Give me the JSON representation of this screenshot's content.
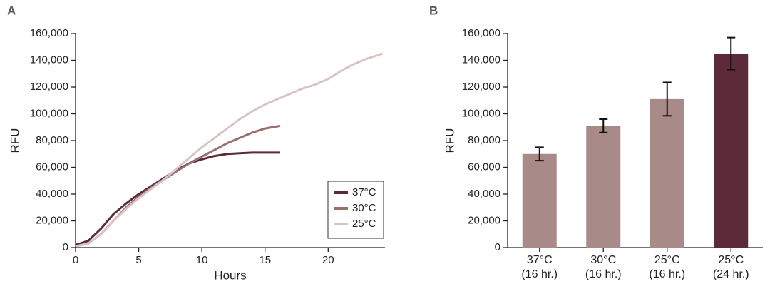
{
  "chart_data": [
    {
      "type": "line",
      "label": "A",
      "xlabel": "Hours",
      "ylabel": "RFU",
      "xlim": [
        0,
        24.5
      ],
      "xticks": [
        0,
        5,
        10,
        15,
        20
      ],
      "ylim": [
        0,
        160000
      ],
      "yticks": [
        0,
        {
          "value": 20000,
          "label": "20,000"
        },
        {
          "value": 40000,
          "label": "40,000"
        },
        {
          "value": 60000,
          "label": "60,000"
        },
        {
          "value": 80000,
          "label": "80,000"
        },
        {
          "value": 100000,
          "label": "100,000"
        },
        {
          "value": 120000,
          "label": "120,000"
        },
        {
          "value": 140000,
          "label": "140,000"
        },
        {
          "value": 160000,
          "label": "160,000"
        }
      ],
      "legend": "lower right",
      "series": [
        {
          "name": "37°C",
          "color": "#5c2a38",
          "x": [
            0,
            1,
            2,
            3,
            4,
            5,
            6,
            7,
            8,
            9,
            10,
            11,
            12,
            13,
            14,
            15,
            16.2
          ],
          "values": [
            2000,
            5000,
            14000,
            25000,
            33000,
            40000,
            46000,
            52000,
            58000,
            63000,
            66000,
            68500,
            70000,
            70500,
            71000,
            71000,
            71000
          ]
        },
        {
          "name": "30°C",
          "color": "#9b6e70",
          "x": [
            0,
            1,
            2,
            3,
            4,
            5,
            6,
            7,
            8,
            9,
            10,
            11,
            12,
            13,
            14,
            15,
            16.2
          ],
          "values": [
            1000,
            3000,
            10000,
            20000,
            30000,
            38000,
            45000,
            51000,
            57000,
            63000,
            68000,
            73000,
            78000,
            82000,
            86000,
            89000,
            91000
          ]
        },
        {
          "name": "25°C",
          "color": "#d9c4c4",
          "x": [
            0,
            1,
            2,
            3,
            4,
            5,
            6,
            7,
            8,
            9,
            10,
            11,
            12,
            13,
            14,
            15,
            16,
            17,
            18,
            19,
            20,
            21,
            22,
            23,
            24,
            24.3
          ],
          "values": [
            1000,
            3000,
            10000,
            20000,
            29000,
            37000,
            44000,
            51000,
            59000,
            67000,
            75000,
            82000,
            89000,
            96000,
            102000,
            107000,
            111000,
            115000,
            119000,
            122000,
            126000,
            132000,
            137000,
            141000,
            144000,
            145000
          ]
        }
      ]
    },
    {
      "type": "bar",
      "label": "B",
      "ylabel": "RFU",
      "ylim": [
        0,
        160000
      ],
      "yticks": [
        0,
        {
          "value": 20000,
          "label": "20,000"
        },
        {
          "value": 40000,
          "label": "40,000"
        },
        {
          "value": 60000,
          "label": "60,000"
        },
        {
          "value": 80000,
          "label": "80,000"
        },
        {
          "value": 100000,
          "label": "100,000"
        },
        {
          "value": 120000,
          "label": "120,000"
        },
        {
          "value": 140000,
          "label": "140,000"
        },
        {
          "value": 160000,
          "label": "160,000"
        }
      ],
      "categories": [
        [
          "37°C",
          "(16 hr.)"
        ],
        [
          "30°C",
          "(16 hr.)"
        ],
        [
          "25°C",
          "(16 hr.)"
        ],
        [
          "25°C",
          "(24 hr.)"
        ]
      ],
      "values": [
        70000,
        91000,
        111000,
        145000
      ],
      "errors": [
        5000,
        5000,
        12500,
        12000
      ],
      "colors": [
        "#a88a88",
        "#a88a88",
        "#a88a88",
        "#5c2a38"
      ]
    }
  ]
}
